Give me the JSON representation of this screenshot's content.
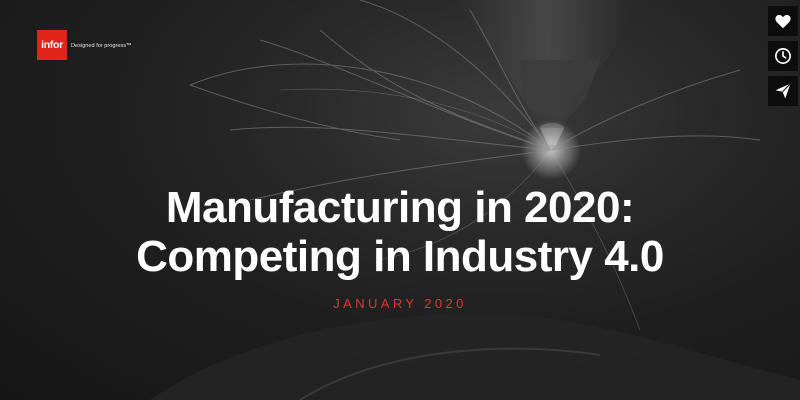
{
  "logo": {
    "brand": "infor",
    "tagline": "Designed for progress™"
  },
  "slide": {
    "title_line1": "Manufacturing in 2020:",
    "title_line2": "Competing in Industry 4.0",
    "date": "JANUARY 2020"
  },
  "side_actions": [
    {
      "icon": "heart-icon"
    },
    {
      "icon": "clock-icon"
    },
    {
      "icon": "send-icon"
    }
  ],
  "colors": {
    "brand_red": "#e0261b",
    "date_red": "#e2372c",
    "background": "#1f1f1f",
    "title": "#ffffff"
  }
}
